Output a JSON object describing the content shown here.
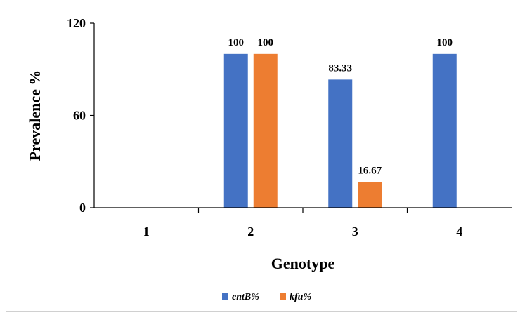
{
  "chart_data": {
    "type": "bar",
    "categories": [
      "1",
      "2",
      "3",
      "4"
    ],
    "series": [
      {
        "name": "entB%",
        "values": [
          0,
          100,
          83.33,
          100
        ],
        "color": "#4472C4"
      },
      {
        "name": "kfu%",
        "values": [
          0,
          100,
          16.67,
          0
        ],
        "color": "#ED7D31"
      }
    ],
    "data_labels": [
      [
        "",
        "100",
        "83.33",
        "100"
      ],
      [
        "",
        "100",
        "16.67",
        ""
      ]
    ],
    "title": "",
    "xlabel": "Genotype",
    "ylabel": "Prevalence %",
    "ylim": [
      0,
      120
    ],
    "yticks": [
      "0",
      "60",
      "120"
    ],
    "grid": false,
    "legend_position": "bottom"
  }
}
